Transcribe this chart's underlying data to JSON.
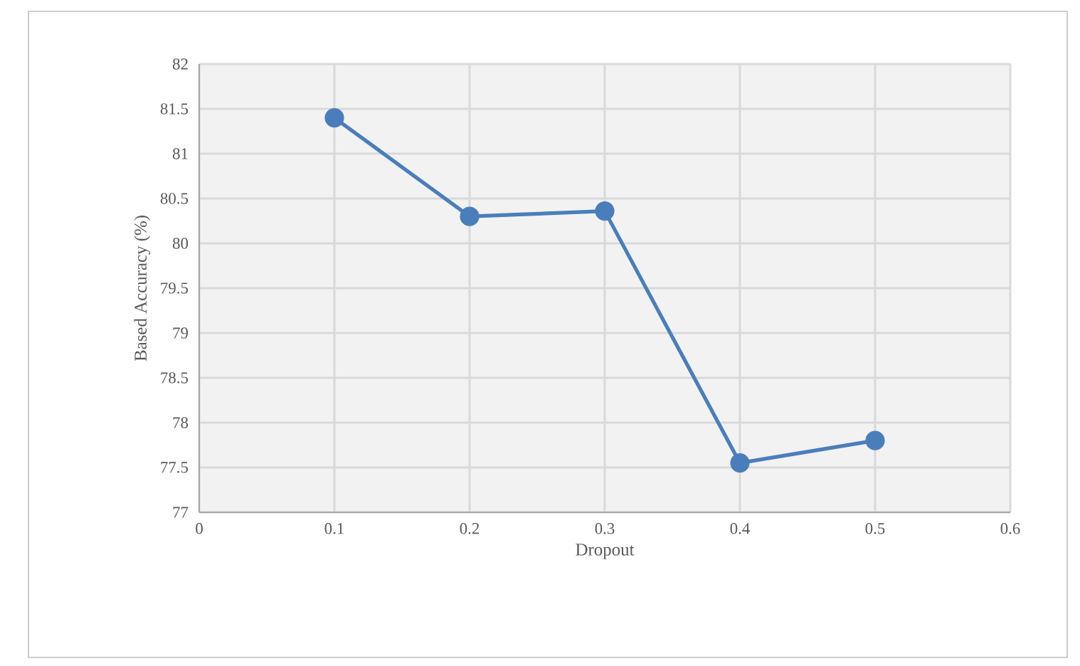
{
  "chart_data": {
    "type": "line",
    "xlabel": "Dropout",
    "ylabel": "Based Accuracy (%)",
    "x": [
      0.1,
      0.2,
      0.3,
      0.4,
      0.5
    ],
    "series": [
      {
        "color": "#4a7ebb",
        "values": [
          81.4,
          80.3,
          80.36,
          77.55,
          77.8
        ]
      }
    ],
    "xlim": [
      0,
      0.6
    ],
    "xticks": [
      0,
      0.1,
      0.2,
      0.3,
      0.4,
      0.5,
      0.6
    ],
    "ylim": [
      77,
      82
    ],
    "yticks": [
      77,
      77.5,
      78,
      78.5,
      79,
      79.5,
      80,
      80.5,
      81,
      81.5,
      82
    ],
    "grid": true,
    "marker": "circle",
    "line_style": "solid"
  }
}
